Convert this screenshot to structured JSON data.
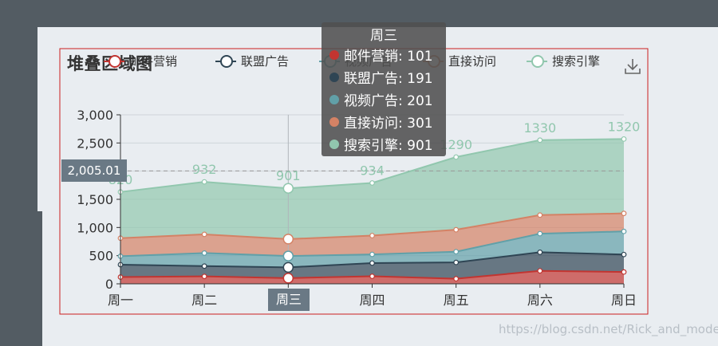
{
  "title": "堆叠区域图",
  "toolbox": {
    "download_icon": "download-icon"
  },
  "tooltip": {
    "title": "周三",
    "rows": [
      {
        "name": "邮件营销",
        "value": "101"
      },
      {
        "name": "联盟广告",
        "value": "191"
      },
      {
        "name": "视频广告",
        "value": "201"
      },
      {
        "name": "直接访问",
        "value": "301"
      },
      {
        "name": "搜索引擎",
        "value": "901"
      }
    ]
  },
  "axis_pointer": {
    "y_label": "2,005.01",
    "x_label": "周三"
  },
  "watermark": "https://blog.csdn.net/Rick_and_mode",
  "chart_data": {
    "type": "area",
    "stacked": true,
    "title": "堆叠区域图",
    "categories": [
      "周一",
      "周二",
      "周三",
      "周四",
      "周五",
      "周六",
      "周日"
    ],
    "ylim": [
      0,
      3000
    ],
    "yticks": [
      "0",
      "500",
      "1,000",
      "1,500",
      "2,000",
      "2,500",
      "3,000"
    ],
    "yticks_values": [
      0,
      500,
      1000,
      1500,
      2000,
      2500,
      3000
    ],
    "grid": true,
    "legend_position": "top",
    "series": [
      {
        "name": "邮件营销",
        "color": "#c23531",
        "values": [
          120,
          132,
          101,
          134,
          90,
          230,
          210
        ]
      },
      {
        "name": "联盟广告",
        "color": "#2f4554",
        "values": [
          220,
          182,
          191,
          234,
          290,
          330,
          310
        ]
      },
      {
        "name": "视频广告",
        "color": "#61a0a8",
        "values": [
          150,
          232,
          201,
          154,
          190,
          330,
          410
        ]
      },
      {
        "name": "直接访问",
        "color": "#d48265",
        "values": [
          320,
          332,
          301,
          334,
          390,
          330,
          320
        ]
      },
      {
        "name": "搜索引擎",
        "color": "#91c7ae",
        "values": [
          820,
          932,
          901,
          934,
          1290,
          1330,
          1320
        ]
      }
    ],
    "top_labels": [
      "820",
      "932",
      "901",
      "934",
      "1290",
      "1330",
      "1320"
    ]
  }
}
